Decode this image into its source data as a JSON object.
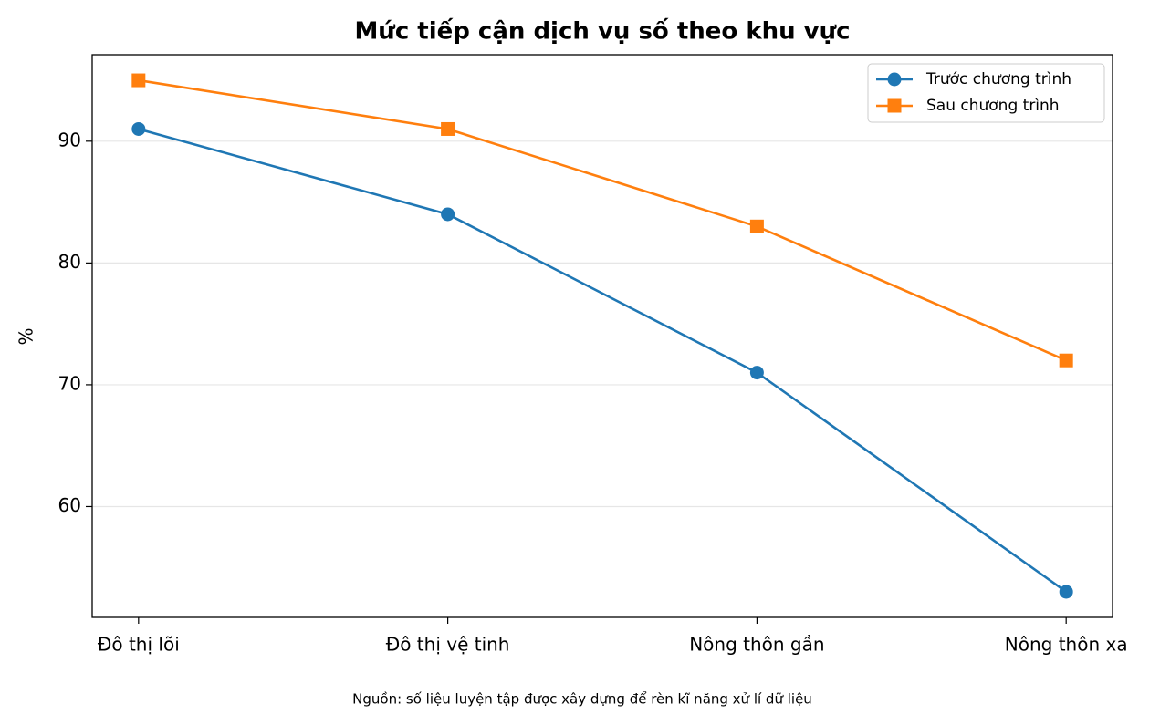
{
  "chart_data": {
    "type": "line",
    "title": "Mức tiếp cận dịch vụ số theo khu vực",
    "y_label": "%",
    "source": "Nguồn: số liệu luyện tập được xây dựng để rèn kĩ năng xử lí dữ liệu",
    "categories": [
      "Đô thị lõi",
      "Đô thị vệ tinh",
      "Nông thôn gần",
      "Nông thôn xa"
    ],
    "series": [
      {
        "name": "Trước chương trình",
        "color": "#1f77b4",
        "marker": "circle",
        "values": [
          91,
          84,
          71,
          53
        ]
      },
      {
        "name": "Sau chương trình",
        "color": "#ff7f0e",
        "marker": "square",
        "values": [
          95,
          91,
          83,
          72
        ]
      }
    ],
    "ylim": [
      50.9,
      97.1
    ],
    "yticks": [
      60,
      70,
      80,
      90
    ],
    "grid": true,
    "legend": "upper right"
  }
}
